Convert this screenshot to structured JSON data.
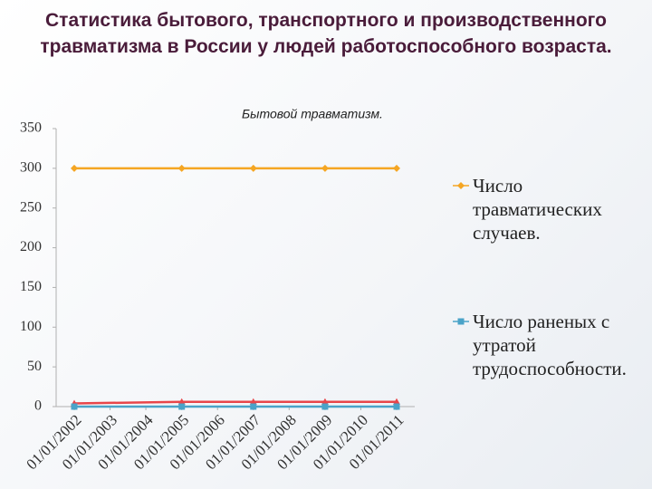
{
  "chart_data": {
    "type": "line",
    "title": "Статистика бытового, транспортного и производственного травматизма в России у людей работоспособного возраста.",
    "subtitle": "Бытовой травматизм.",
    "xlim": [
      "01/01/2002",
      "01/01/2011"
    ],
    "xticks": [
      "01/01/2002",
      "01/01/2003",
      "01/01/2004",
      "01/01/2005",
      "01/01/2006",
      "01/01/2007",
      "01/01/2008",
      "01/01/2009",
      "01/01/2010",
      "01/01/2011"
    ],
    "ylim": [
      0,
      350
    ],
    "yticks": [
      0,
      50,
      100,
      150,
      200,
      250,
      300,
      350
    ],
    "grid": false,
    "series": [
      {
        "name": "Число травматических случаев.",
        "color": "#f5a623",
        "marker": "diamond",
        "x": [
          "01/01/2002",
          "01/01/2005",
          "01/01/2007",
          "01/01/2009",
          "01/01/2011"
        ],
        "values": [
          300,
          300,
          300,
          300,
          300
        ]
      },
      {
        "color": "#e8464a",
        "marker": "triangle",
        "x": [
          "01/01/2002",
          "01/01/2005",
          "01/01/2007",
          "01/01/2009",
          "01/01/2011"
        ],
        "values": [
          4,
          6,
          6,
          6,
          6
        ]
      },
      {
        "name": "Число раненых с утратой трудоспособности.",
        "color": "#4aa3c8",
        "marker": "square",
        "x": [
          "01/01/2002",
          "01/01/2005",
          "01/01/2007",
          "01/01/2009",
          "01/01/2011"
        ],
        "values": [
          0,
          0,
          0,
          0,
          0
        ]
      }
    ]
  }
}
